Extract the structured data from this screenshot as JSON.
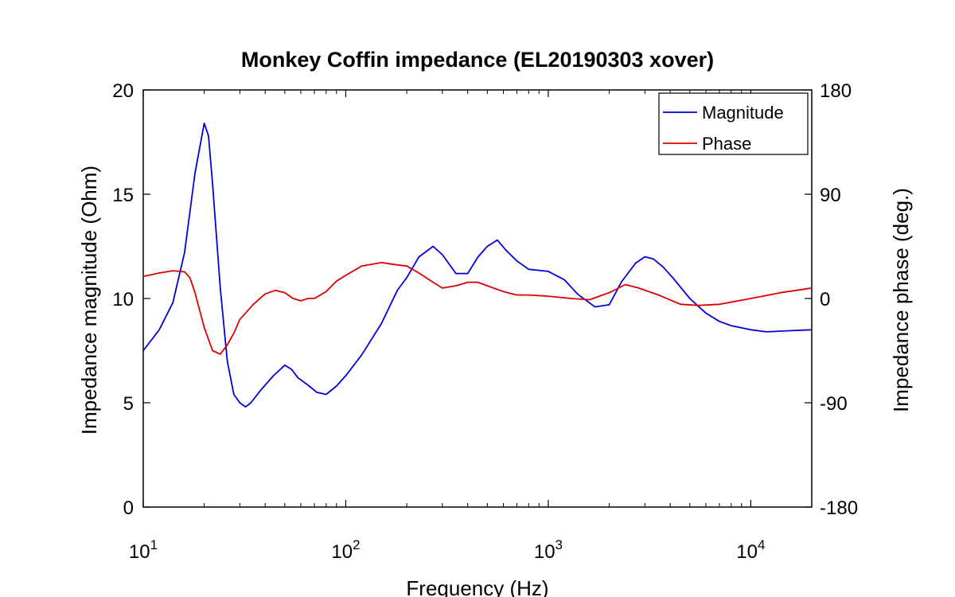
{
  "chart_data": {
    "type": "line",
    "title": "Monkey Coffin impedance (EL20190303 xover)",
    "xlabel": "Frequency (Hz)",
    "ylabel_left": "Impedance magnitude (Ohm)",
    "ylabel_right": "Impedance phase (deg.)",
    "x_scale": "log",
    "xlim": [
      10,
      20000
    ],
    "ylim_left": [
      0,
      20
    ],
    "ylim_right": [
      -180,
      180
    ],
    "x_ticks": [
      {
        "value": 10,
        "base": "10",
        "exp": "1"
      },
      {
        "value": 100,
        "base": "10",
        "exp": "2"
      },
      {
        "value": 1000,
        "base": "10",
        "exp": "3"
      },
      {
        "value": 10000,
        "base": "10",
        "exp": "4"
      }
    ],
    "y_ticks_left": [
      "0",
      "5",
      "10",
      "15",
      "20"
    ],
    "y_ticks_right": [
      "-180",
      "-90",
      "0",
      "90",
      "180"
    ],
    "grid": false,
    "legend_position": "top-right",
    "colors": {
      "magnitude": "#0000dd",
      "phase": "#dd0000"
    },
    "series": [
      {
        "name": "Magnitude",
        "axis": "left",
        "x": [
          10,
          12,
          14,
          16,
          18,
          20,
          21,
          22,
          24,
          26,
          28,
          30,
          32,
          34,
          38,
          44,
          50,
          54,
          58,
          62,
          66,
          72,
          80,
          90,
          100,
          120,
          150,
          180,
          200,
          230,
          270,
          300,
          350,
          400,
          450,
          500,
          560,
          620,
          700,
          800,
          1000,
          1200,
          1400,
          1700,
          2000,
          2300,
          2700,
          3000,
          3300,
          3700,
          4200,
          5000,
          6000,
          7000,
          8000,
          10000,
          12000,
          15000,
          20000
        ],
        "y": [
          7.5,
          8.5,
          9.8,
          12.2,
          16.0,
          18.4,
          17.8,
          15.5,
          10.5,
          7.0,
          5.4,
          5.0,
          4.8,
          5.0,
          5.6,
          6.3,
          6.8,
          6.6,
          6.2,
          6.0,
          5.8,
          5.5,
          5.4,
          5.8,
          6.3,
          7.3,
          8.8,
          10.4,
          11.0,
          12.0,
          12.5,
          12.1,
          11.2,
          11.2,
          12.0,
          12.5,
          12.8,
          12.3,
          11.8,
          11.4,
          11.3,
          10.9,
          10.2,
          9.6,
          9.7,
          10.8,
          11.7,
          12.0,
          11.9,
          11.5,
          10.9,
          10.0,
          9.3,
          8.9,
          8.7,
          8.5,
          8.4,
          8.45,
          8.5
        ]
      },
      {
        "name": "Phase",
        "axis": "right",
        "x": [
          10,
          12,
          14,
          16,
          17,
          18,
          20,
          22,
          24,
          26,
          28,
          30,
          35,
          40,
          45,
          50,
          55,
          60,
          65,
          70,
          80,
          90,
          100,
          120,
          150,
          180,
          200,
          230,
          270,
          300,
          350,
          400,
          450,
          500,
          600,
          700,
          800,
          1000,
          1300,
          1600,
          2000,
          2400,
          2800,
          3500,
          4500,
          5500,
          7000,
          10000,
          14000,
          20000
        ],
        "y": [
          19,
          22,
          24,
          23,
          18,
          5,
          -25,
          -45,
          -48,
          -40,
          -30,
          -18,
          -5,
          4,
          7,
          5,
          0,
          -2,
          0,
          0,
          6,
          15,
          20,
          28,
          31,
          29,
          28,
          22,
          14,
          9,
          11,
          14,
          14,
          11,
          6,
          3,
          3,
          2,
          0,
          -1,
          5,
          12,
          9,
          3,
          -5,
          -6,
          -5,
          0,
          5,
          9
        ]
      }
    ]
  }
}
